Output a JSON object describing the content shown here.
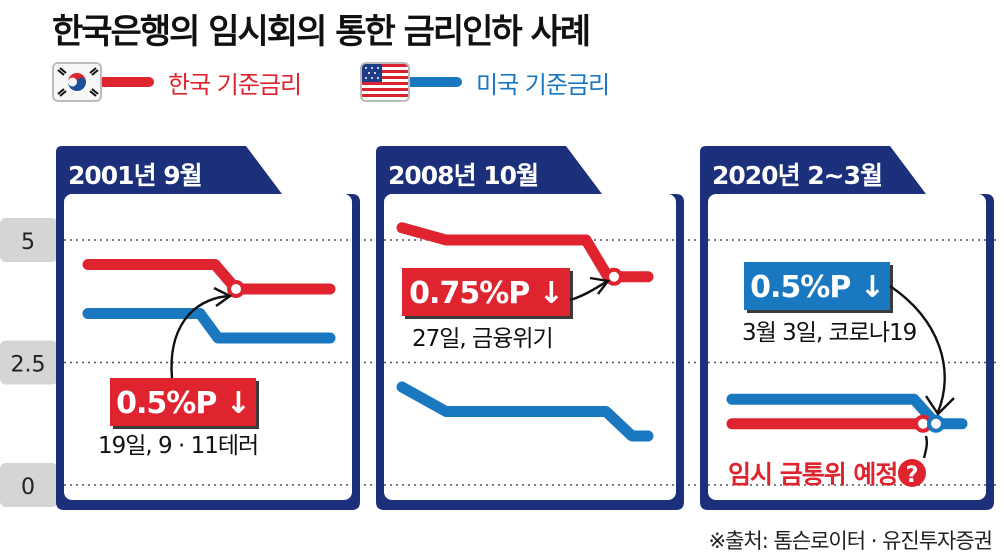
{
  "title": "한국은행의 임시회의 통한 금리인하 사례",
  "legend": {
    "korea": {
      "label": "한국 기준금리",
      "color": "#e0242f",
      "icon": "south-korea-flag-icon"
    },
    "usa": {
      "label": "미국 기준금리",
      "color": "#1a78c0",
      "icon": "usa-flag-icon"
    }
  },
  "source": "※출처: 톰슨로이터 · 유진투자증권",
  "colors": {
    "panel_frame": "#1c2f7a",
    "korea": "#e0242f",
    "usa": "#1a78c0"
  },
  "chart_data": {
    "type": "line",
    "y_ticks": [
      "5",
      "2.5",
      "0"
    ],
    "ylim": [
      0,
      6.2
    ],
    "grid": true,
    "panels": [
      {
        "label": "2001년 9월",
        "series": [
          {
            "name": "한국 기준금리",
            "values": [
              4.5,
              4.5,
              4.0,
              4.0
            ]
          },
          {
            "name": "미국 기준금리",
            "values": [
              3.5,
              3.5,
              3.0,
              3.0
            ]
          }
        ],
        "callout": {
          "text": "0.5%P ↓",
          "note": "19일, 9 · 11테러",
          "box_color": "#e0242f"
        }
      },
      {
        "label": "2008년 10월",
        "series": [
          {
            "name": "한국 기준금리",
            "values": [
              5.25,
              5.0,
              5.0,
              4.25,
              4.25
            ]
          },
          {
            "name": "미국 기준금리",
            "values": [
              2.0,
              1.5,
              1.5,
              1.0,
              1.0
            ]
          }
        ],
        "callout": {
          "text": "0.75%P ↓",
          "note": "27일, 금융위기",
          "box_color": "#e0242f"
        }
      },
      {
        "label": "2020년 2~3월",
        "series": [
          {
            "name": "한국 기준금리",
            "values": [
              1.25,
              1.25,
              1.25
            ]
          },
          {
            "name": "미국 기준금리",
            "values": [
              1.75,
              1.75,
              1.25
            ]
          }
        ],
        "callout": {
          "text": "0.5%P ↓",
          "note": "3월 3일, 코로나19",
          "box_color": "#1a78c0"
        },
        "annotation": "임시 금통위 예정"
      }
    ]
  }
}
